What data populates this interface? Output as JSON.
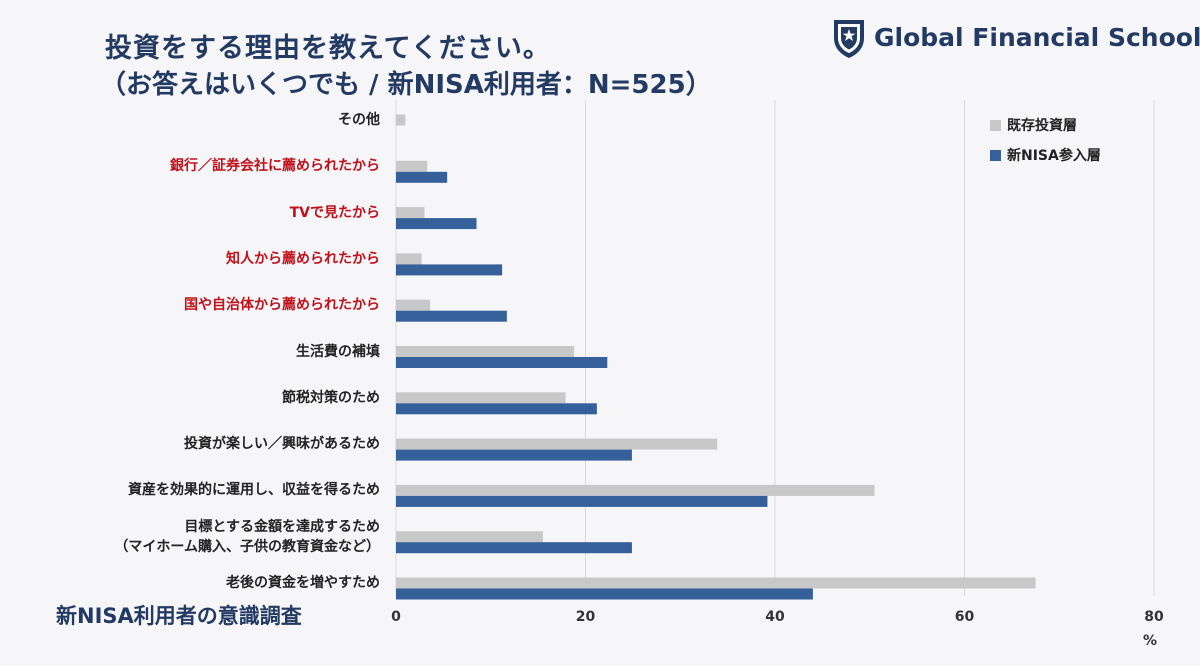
{
  "header": {
    "title": "投資をする理由を教えてください。",
    "subtitle": "（お答えはいくつでも / 新NISA利用者：N=525）"
  },
  "logo": {
    "text": "Global Financial School",
    "icon": "shield-star-icon",
    "color": "#233a63"
  },
  "footer": {
    "label": "新NISA利用者の意識調査"
  },
  "colors": {
    "existing": "#c8c8c8",
    "new": "#35609a",
    "highlight_label": "#c0111b"
  },
  "chart_data": {
    "type": "bar",
    "orientation": "horizontal",
    "categories": [
      {
        "label": "その他",
        "highlight": false
      },
      {
        "label": "銀行／証券会社に薦められたから",
        "highlight": true
      },
      {
        "label": "TVで見たから",
        "highlight": true
      },
      {
        "label": "知人から薦められたから",
        "highlight": true
      },
      {
        "label": "国や自治体から薦められたから",
        "highlight": true
      },
      {
        "label": "生活費の補填",
        "highlight": false
      },
      {
        "label": "節税対策のため",
        "highlight": false
      },
      {
        "label": "投資が楽しい／興味があるため",
        "highlight": false
      },
      {
        "label": "資産を効果的に運用し、収益を得るため",
        "highlight": false
      },
      {
        "label": "目標とする金額を達成するため",
        "label2": "（マイホーム購入、子供の教育資金など）",
        "highlight": false
      },
      {
        "label": "老後の資金を増やすため",
        "highlight": false
      }
    ],
    "series": [
      {
        "name": "既存投資層",
        "values": [
          1.0,
          3.3,
          3.0,
          2.7,
          3.6,
          18.8,
          17.9,
          33.9,
          50.5,
          15.5,
          67.5
        ]
      },
      {
        "name": "新NISA参入層",
        "values": [
          0,
          5.4,
          8.5,
          11.2,
          11.7,
          22.3,
          21.2,
          24.9,
          39.2,
          24.9,
          44.0
        ]
      }
    ],
    "xlim": [
      0,
      80
    ],
    "xticks": [
      "0",
      "20",
      "40",
      "60",
      "80"
    ],
    "xlabel": "%",
    "grid": true,
    "legend_position": "top-right"
  }
}
